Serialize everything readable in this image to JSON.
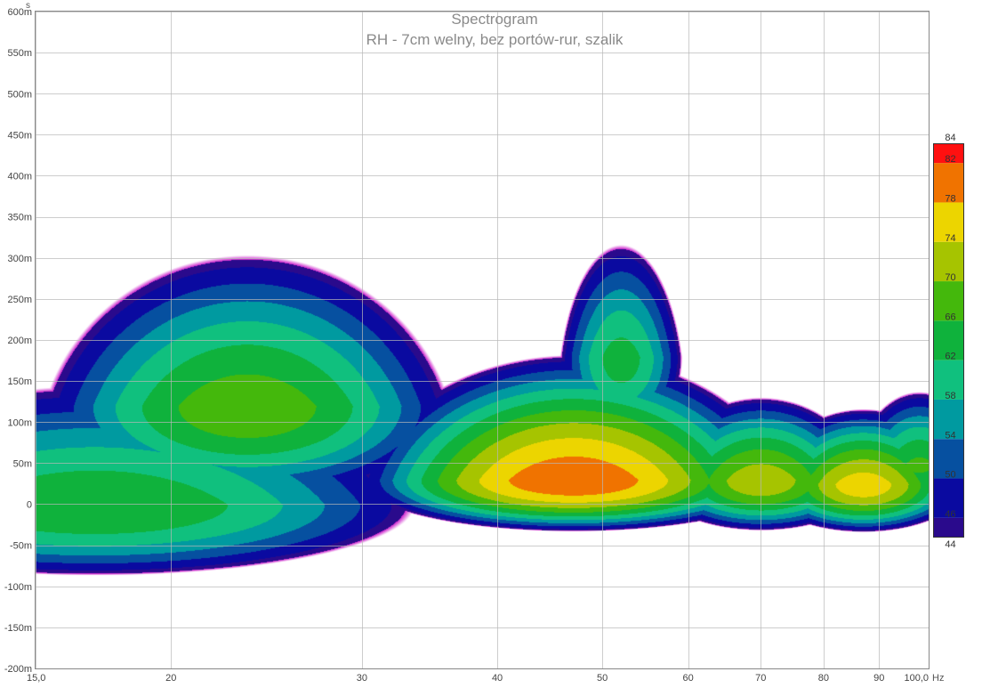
{
  "chart_data": {
    "type": "heatmap",
    "title": "Spectrogram",
    "subtitle": "RH - 7cm welny, bez portów-rur, szalik",
    "xlabel": "",
    "ylabel": "",
    "x_scale": "log",
    "xlim": [
      15,
      100
    ],
    "ylim": [
      -0.2,
      0.6
    ],
    "y_unit_label": "s",
    "x_unit_label": "Hz",
    "x_ticks": [
      {
        "v": 15,
        "label": "15,0"
      },
      {
        "v": 20,
        "label": "20"
      },
      {
        "v": 30,
        "label": "30"
      },
      {
        "v": 40,
        "label": "40"
      },
      {
        "v": 50,
        "label": "50"
      },
      {
        "v": 60,
        "label": "60"
      },
      {
        "v": 70,
        "label": "70"
      },
      {
        "v": 80,
        "label": "80"
      },
      {
        "v": 90,
        "label": "90"
      },
      {
        "v": 100,
        "label": "100,0"
      }
    ],
    "y_ticks": [
      {
        "v": 0.6,
        "label": "600m"
      },
      {
        "v": 0.55,
        "label": "550m"
      },
      {
        "v": 0.5,
        "label": "500m"
      },
      {
        "v": 0.45,
        "label": "450m"
      },
      {
        "v": 0.4,
        "label": "400m"
      },
      {
        "v": 0.35,
        "label": "350m"
      },
      {
        "v": 0.3,
        "label": "300m"
      },
      {
        "v": 0.25,
        "label": "250m"
      },
      {
        "v": 0.2,
        "label": "200m"
      },
      {
        "v": 0.15,
        "label": "150m"
      },
      {
        "v": 0.1,
        "label": "100m"
      },
      {
        "v": 0.05,
        "label": "50m"
      },
      {
        "v": 0.0,
        "label": "0"
      },
      {
        "v": -0.05,
        "label": "-50m"
      },
      {
        "v": -0.1,
        "label": "-100m"
      },
      {
        "v": -0.15,
        "label": "-150m"
      },
      {
        "v": -0.2,
        "label": "-200m"
      }
    ],
    "grid": true,
    "colorbar": {
      "placement": "right",
      "range": [
        44,
        84
      ],
      "labels": [
        "84",
        "82",
        "78",
        "74",
        "70",
        "66",
        "62",
        "58",
        "54",
        "50",
        "46",
        "44"
      ],
      "bands": [
        {
          "from": 44,
          "to": 46,
          "color": "#2a0a8c"
        },
        {
          "from": 46,
          "to": 50,
          "color": "#0a0aa0"
        },
        {
          "from": 50,
          "to": 54,
          "color": "#0650a0"
        },
        {
          "from": 54,
          "to": 58,
          "color": "#009aa0"
        },
        {
          "from": 58,
          "to": 62,
          "color": "#10c07e"
        },
        {
          "from": 62,
          "to": 66,
          "color": "#0fb23c"
        },
        {
          "from": 66,
          "to": 70,
          "color": "#44b80c"
        },
        {
          "from": 70,
          "to": 74,
          "color": "#a6c400"
        },
        {
          "from": 74,
          "to": 78,
          "color": "#ecd500"
        },
        {
          "from": 78,
          "to": 82,
          "color": "#f07300"
        },
        {
          "from": 82,
          "to": 84,
          "color": "#ff1010"
        }
      ]
    },
    "edge_color": "#cc22cc",
    "peaks": [
      {
        "f": 47,
        "t": 0.03,
        "peak_db": 81.5,
        "decay_s": 0.13,
        "lead_s": 0.045,
        "f_spread": 0.078
      },
      {
        "f": 87,
        "t": 0.025,
        "peak_db": 76.5,
        "decay_s": 0.085,
        "lead_s": 0.045,
        "f_spread": 0.04
      },
      {
        "f": 70,
        "t": 0.03,
        "peak_db": 73.0,
        "decay_s": 0.1,
        "lead_s": 0.05,
        "f_spread": 0.045
      },
      {
        "f": 23.5,
        "t": 0.12,
        "peak_db": 69.0,
        "decay_s": 0.2,
        "lead_s": 0.1,
        "f_spread": 0.09
      },
      {
        "f": 17,
        "t": 0.0,
        "peak_db": 66.0,
        "decay_s": 0.17,
        "lead_s": 0.08,
        "f_spread": 0.15
      },
      {
        "f": 52,
        "t": 0.18,
        "peak_db": 64.0,
        "decay_s": 0.17,
        "lead_s": 0.1,
        "f_spread": 0.03
      },
      {
        "f": 98,
        "t": 0.05,
        "peak_db": 67.0,
        "decay_s": 0.1,
        "lead_s": 0.05,
        "f_spread": 0.03
      }
    ]
  }
}
